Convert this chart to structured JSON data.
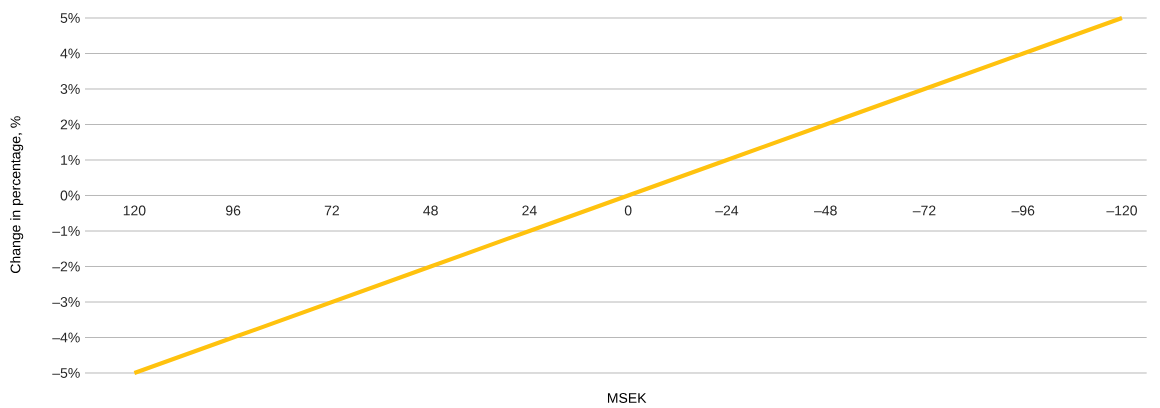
{
  "chart_data": {
    "type": "line",
    "xlabel": "MSEK",
    "ylabel": "Change in percentage, %",
    "categories": [
      "120",
      "96",
      "72",
      "48",
      "24",
      "0",
      "–24",
      "–48",
      "–72",
      "–96",
      "–120"
    ],
    "series": [
      {
        "color": "#ffc20e",
        "values": [
          -5,
          -4,
          -3,
          -2,
          -1,
          0,
          1,
          2,
          3,
          4,
          5
        ]
      }
    ],
    "ylim": [
      -5,
      5
    ],
    "yticks": [
      {
        "value": -5,
        "label": "–5%"
      },
      {
        "value": -4,
        "label": "–4%"
      },
      {
        "value": -3,
        "label": "–3%"
      },
      {
        "value": -2,
        "label": "–2%"
      },
      {
        "value": -1,
        "label": "–1%"
      },
      {
        "value": 0,
        "label": "0%"
      },
      {
        "value": 1,
        "label": "1%"
      },
      {
        "value": 2,
        "label": "2%"
      },
      {
        "value": 3,
        "label": "3%"
      },
      {
        "value": 4,
        "label": "4%"
      },
      {
        "value": 5,
        "label": "5%"
      }
    ],
    "grid": "y",
    "marker": "none",
    "line_style": "solid"
  }
}
